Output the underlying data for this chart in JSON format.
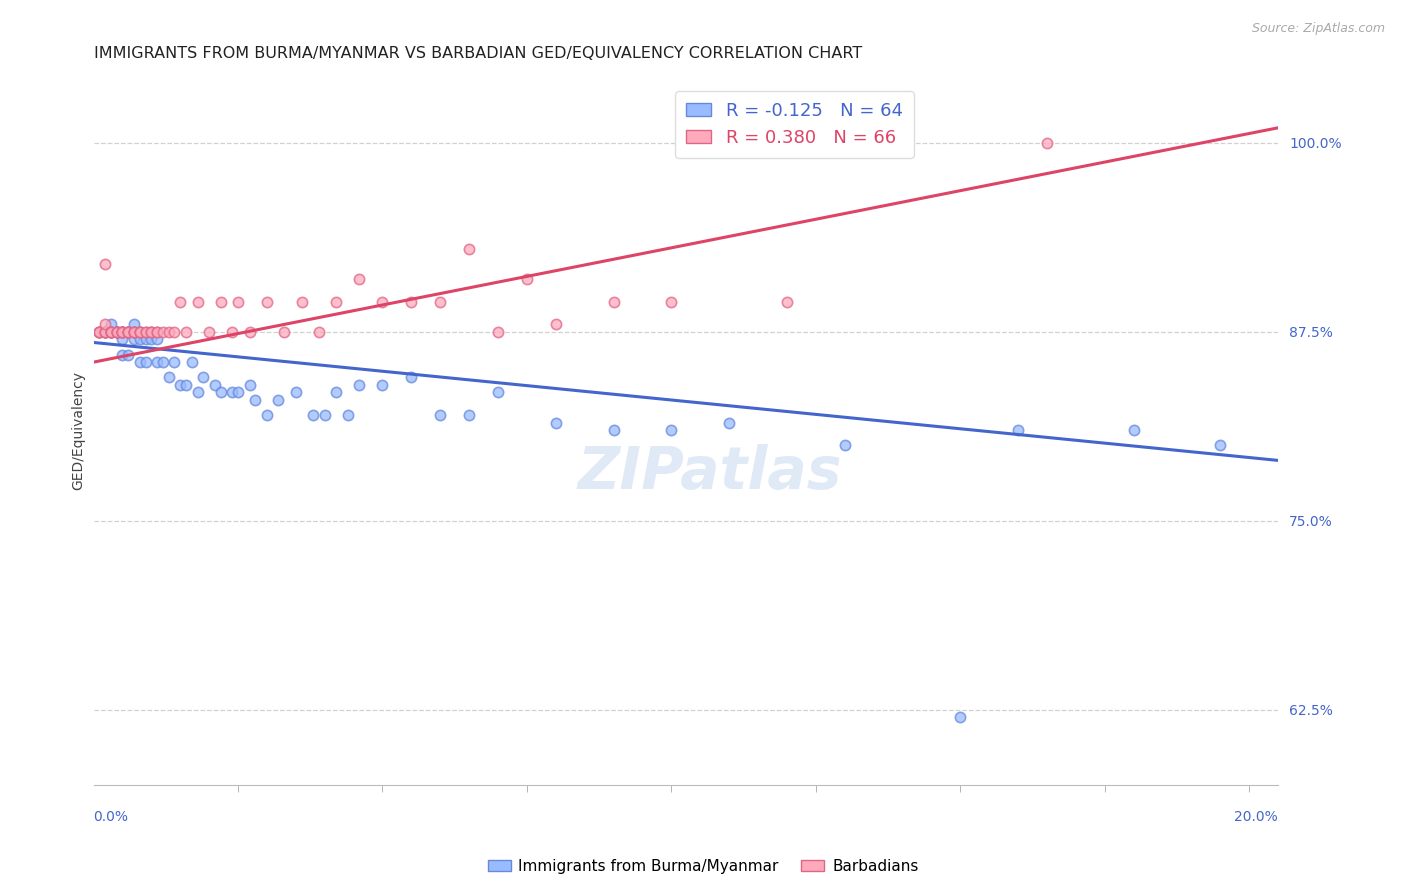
{
  "title": "IMMIGRANTS FROM BURMA/MYANMAR VS BARBADIAN GED/EQUIVALENCY CORRELATION CHART",
  "source": "Source: ZipAtlas.com",
  "ylabel": "GED/Equivalency",
  "ytick_labels": [
    "62.5%",
    "75.0%",
    "87.5%",
    "100.0%"
  ],
  "ytick_values": [
    0.625,
    0.75,
    0.875,
    1.0
  ],
  "xlim": [
    0.0,
    0.205
  ],
  "ylim": [
    0.575,
    1.045
  ],
  "blue_R": "-0.125",
  "blue_N": "64",
  "pink_R": "0.380",
  "pink_N": "66",
  "legend_label_blue": "Immigrants from Burma/Myanmar",
  "legend_label_pink": "Barbadians",
  "watermark": "ZIPatlas",
  "blue_scatter_x": [
    0.001,
    0.002,
    0.002,
    0.003,
    0.003,
    0.003,
    0.004,
    0.004,
    0.004,
    0.005,
    0.005,
    0.005,
    0.005,
    0.006,
    0.006,
    0.006,
    0.007,
    0.007,
    0.007,
    0.008,
    0.008,
    0.008,
    0.009,
    0.009,
    0.01,
    0.01,
    0.011,
    0.011,
    0.012,
    0.013,
    0.014,
    0.015,
    0.016,
    0.017,
    0.018,
    0.019,
    0.021,
    0.022,
    0.024,
    0.025,
    0.027,
    0.028,
    0.03,
    0.032,
    0.035,
    0.038,
    0.04,
    0.042,
    0.044,
    0.046,
    0.05,
    0.055,
    0.06,
    0.065,
    0.07,
    0.08,
    0.09,
    0.1,
    0.11,
    0.13,
    0.15,
    0.16,
    0.18,
    0.195
  ],
  "blue_scatter_y": [
    0.875,
    0.875,
    0.875,
    0.875,
    0.875,
    0.88,
    0.875,
    0.875,
    0.875,
    0.875,
    0.875,
    0.86,
    0.87,
    0.875,
    0.875,
    0.86,
    0.875,
    0.87,
    0.88,
    0.855,
    0.87,
    0.875,
    0.855,
    0.87,
    0.875,
    0.87,
    0.855,
    0.87,
    0.855,
    0.845,
    0.855,
    0.84,
    0.84,
    0.855,
    0.835,
    0.845,
    0.84,
    0.835,
    0.835,
    0.835,
    0.84,
    0.83,
    0.82,
    0.83,
    0.835,
    0.82,
    0.82,
    0.835,
    0.82,
    0.84,
    0.84,
    0.845,
    0.82,
    0.82,
    0.835,
    0.815,
    0.81,
    0.81,
    0.815,
    0.8,
    0.62,
    0.81,
    0.81,
    0.8
  ],
  "pink_scatter_x": [
    0.001,
    0.001,
    0.001,
    0.002,
    0.002,
    0.002,
    0.002,
    0.002,
    0.003,
    0.003,
    0.003,
    0.003,
    0.004,
    0.004,
    0.004,
    0.004,
    0.005,
    0.005,
    0.005,
    0.005,
    0.005,
    0.006,
    0.006,
    0.006,
    0.006,
    0.007,
    0.007,
    0.007,
    0.007,
    0.008,
    0.008,
    0.008,
    0.009,
    0.009,
    0.01,
    0.01,
    0.011,
    0.011,
    0.012,
    0.013,
    0.014,
    0.015,
    0.016,
    0.018,
    0.02,
    0.022,
    0.024,
    0.025,
    0.027,
    0.03,
    0.033,
    0.036,
    0.039,
    0.042,
    0.046,
    0.05,
    0.055,
    0.06,
    0.065,
    0.07,
    0.075,
    0.08,
    0.09,
    0.1,
    0.12,
    0.165
  ],
  "pink_scatter_y": [
    0.875,
    0.875,
    0.875,
    0.875,
    0.875,
    0.875,
    0.88,
    0.92,
    0.875,
    0.875,
    0.875,
    0.875,
    0.875,
    0.875,
    0.875,
    0.875,
    0.875,
    0.875,
    0.875,
    0.875,
    0.875,
    0.875,
    0.875,
    0.875,
    0.875,
    0.875,
    0.875,
    0.875,
    0.875,
    0.875,
    0.875,
    0.875,
    0.875,
    0.875,
    0.875,
    0.875,
    0.875,
    0.875,
    0.875,
    0.875,
    0.875,
    0.895,
    0.875,
    0.895,
    0.875,
    0.895,
    0.875,
    0.895,
    0.875,
    0.895,
    0.875,
    0.895,
    0.875,
    0.895,
    0.91,
    0.895,
    0.895,
    0.895,
    0.93,
    0.875,
    0.91,
    0.88,
    0.895,
    0.895,
    0.895,
    1.0
  ],
  "blue_line_x": [
    0.0,
    0.205
  ],
  "blue_line_y": [
    0.868,
    0.79
  ],
  "pink_line_x": [
    0.0,
    0.205
  ],
  "pink_line_y": [
    0.855,
    1.01
  ],
  "blue_color": "#99bbff",
  "blue_edge_color": "#6688dd",
  "blue_line_color": "#4466cc",
  "pink_color": "#ffaabb",
  "pink_edge_color": "#dd6688",
  "pink_line_color": "#dd4466",
  "marker_size": 55,
  "marker_lw": 1.2,
  "grid_color": "#cccccc",
  "background_color": "#ffffff",
  "title_fontsize": 11.5,
  "axis_label_fontsize": 10,
  "tick_label_fontsize": 10,
  "legend_fontsize": 13,
  "watermark_fontsize": 42,
  "watermark_color": "#c8d8f0",
  "watermark_alpha": 0.55,
  "xtick_minor_positions": [
    0.025,
    0.05,
    0.075,
    0.1,
    0.125,
    0.15,
    0.175,
    0.2
  ]
}
